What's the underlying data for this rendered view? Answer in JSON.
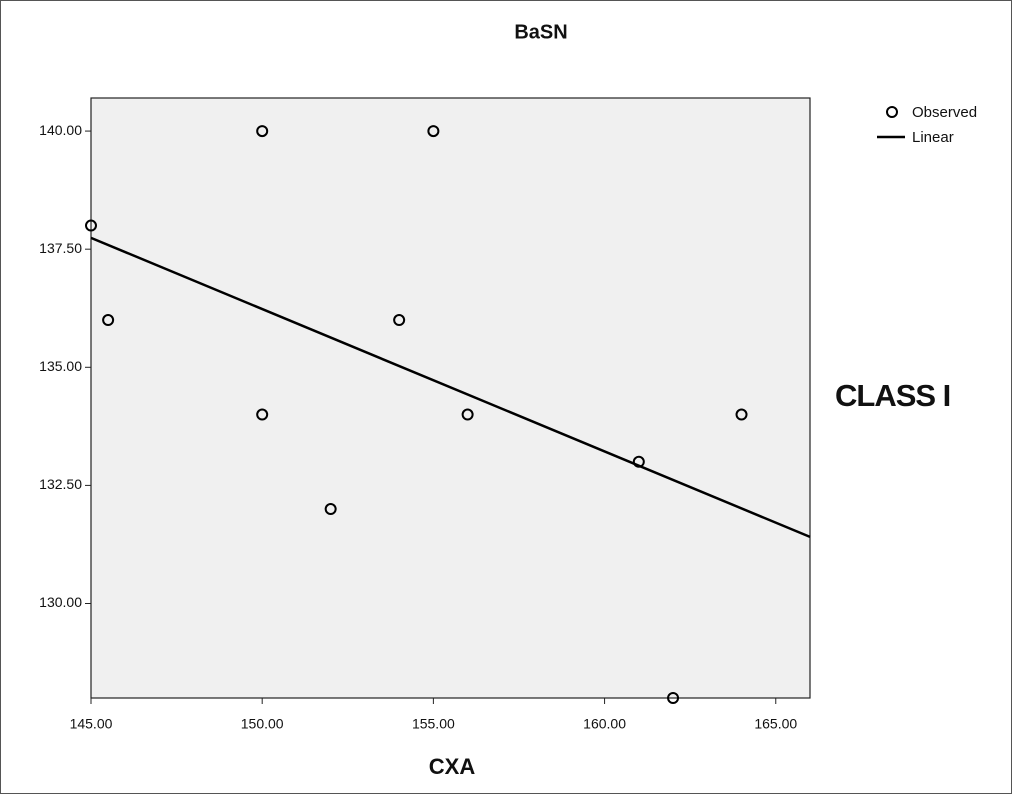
{
  "chart_data": {
    "type": "scatter",
    "title": "BaSN",
    "x_label": "CXA",
    "annotation": "CLASS I",
    "xlim": [
      145,
      166
    ],
    "ylim": [
      128,
      140.7
    ],
    "xticks": [
      {
        "value": 145,
        "label": "145.00"
      },
      {
        "value": 150,
        "label": "150.00"
      },
      {
        "value": 155,
        "label": "155.00"
      },
      {
        "value": 160,
        "label": "160.00"
      },
      {
        "value": 165,
        "label": "165.00"
      }
    ],
    "yticks": [
      {
        "value": 130,
        "label": "130.00"
      },
      {
        "value": 132.5,
        "label": "132.50"
      },
      {
        "value": 135,
        "label": "135.00"
      },
      {
        "value": 137.5,
        "label": "137.50"
      },
      {
        "value": 140,
        "label": "140.00"
      }
    ],
    "grid": false,
    "legend": "outside-right",
    "plot_background": "#f0f0f0",
    "series": [
      {
        "name": "Observed",
        "marker": "circle",
        "color": "#000000",
        "x": [
          145,
          145.5,
          150,
          150,
          152,
          154,
          155,
          156,
          161,
          162,
          164
        ],
        "values": [
          138,
          136,
          140,
          134,
          132,
          136,
          140,
          134,
          133,
          128,
          134
        ]
      },
      {
        "name": "Linear",
        "marker": "line",
        "color": "#000000",
        "x": [
          145,
          166
        ],
        "values": [
          137.74,
          131.41
        ]
      }
    ]
  }
}
